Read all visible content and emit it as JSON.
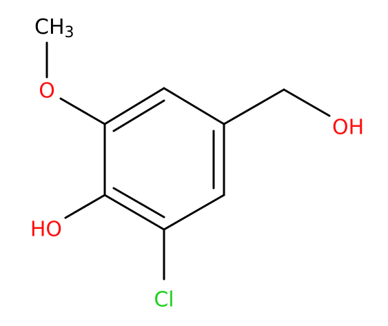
{
  "atoms": {
    "methyl": {
      "main": "CH",
      "sub": "3"
    },
    "methoxy_oxygen": "O",
    "hydroxymethyl_oh": "OH",
    "phenol_oh": "HO",
    "chlorine": "Cl"
  }
}
